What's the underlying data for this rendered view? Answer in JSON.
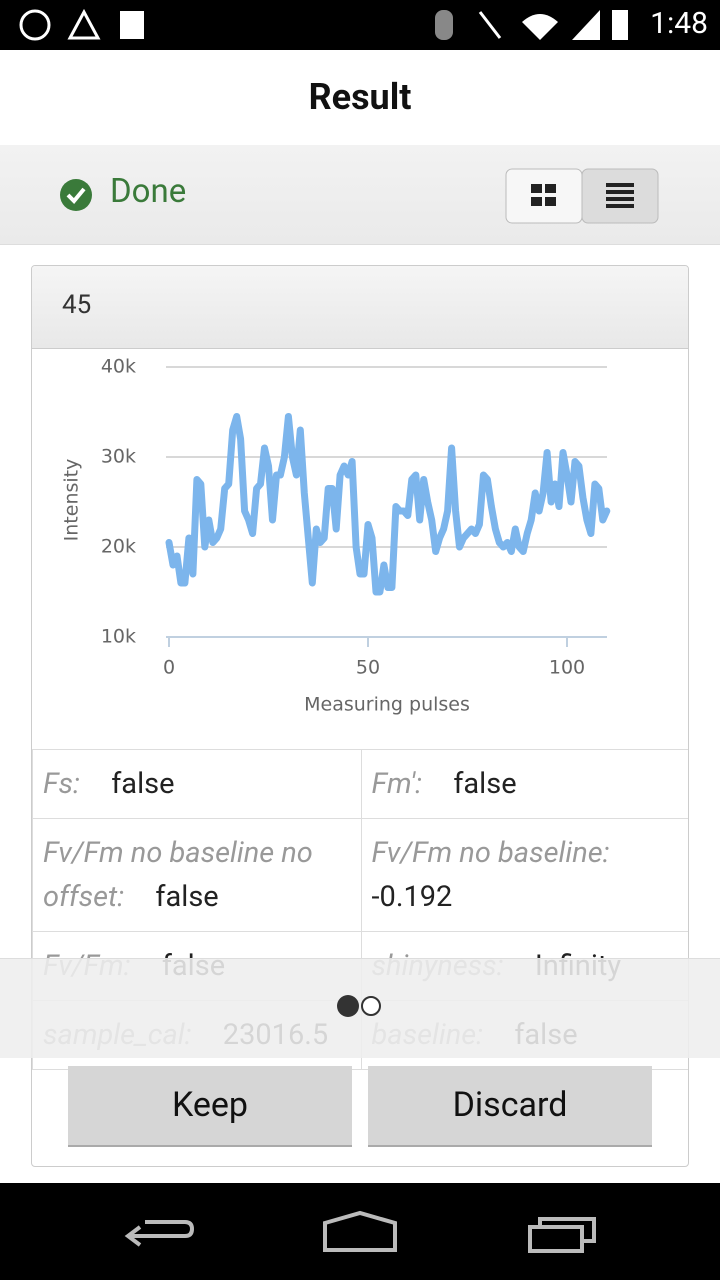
{
  "status_bar": {
    "time": "1:48"
  },
  "header": {
    "title": "Result"
  },
  "status": {
    "label": "Done"
  },
  "card": {
    "title": "45",
    "fields": [
      {
        "label": "Fs:",
        "value": "false"
      },
      {
        "label": "Fm':",
        "value": "false"
      },
      {
        "label": "Fv/Fm no baseline no offset:",
        "value": "false"
      },
      {
        "label": "Fv/Fm no baseline:",
        "value": -0.192
      },
      {
        "label": "Fv/Fm:",
        "value": "false"
      },
      {
        "label": "shinyness:",
        "value": "Infinity"
      },
      {
        "label": "sample_cal:",
        "value": 23016.5
      },
      {
        "label": "baseline:",
        "value": "false"
      }
    ]
  },
  "chart_data": {
    "type": "line",
    "color": "#7cb5ec",
    "x_label": "Measuring pulses",
    "y_label": "Intensity",
    "x": [
      0,
      1,
      2,
      3,
      4,
      5,
      6,
      7,
      8,
      9,
      10,
      11,
      12,
      13,
      14,
      15,
      16,
      17,
      18,
      19,
      20,
      21,
      22,
      23,
      24,
      25,
      26,
      27,
      28,
      29,
      30,
      31,
      32,
      33,
      34,
      35,
      36,
      37,
      38,
      39,
      40,
      41,
      42,
      43,
      44,
      45,
      46,
      47,
      48,
      49,
      50,
      51,
      52,
      53,
      54,
      55,
      56,
      57,
      58,
      59,
      60,
      61,
      62,
      63,
      64,
      65,
      66,
      67,
      68,
      69,
      70,
      71,
      72,
      73,
      74,
      75,
      76,
      77,
      78,
      79,
      80,
      81,
      82,
      83,
      84,
      85,
      86,
      87,
      88,
      89,
      90,
      91,
      92,
      93,
      94,
      95,
      96,
      97,
      98,
      99,
      100,
      101,
      102,
      103,
      104,
      105,
      106,
      107,
      108,
      109,
      110
    ],
    "values": [
      20500,
      18000,
      19000,
      16000,
      16000,
      21000,
      17000,
      27500,
      27000,
      20000,
      23000,
      20500,
      21000,
      22000,
      26500,
      27000,
      33000,
      34500,
      32000,
      24000,
      23000,
      21500,
      26500,
      27000,
      31000,
      29000,
      23000,
      28000,
      28000,
      30000,
      34500,
      30000,
      28000,
      33000,
      26000,
      21000,
      16000,
      22000,
      20500,
      21000,
      26500,
      26500,
      22000,
      28000,
      29000,
      28000,
      29500,
      20000,
      17000,
      17000,
      22500,
      21000,
      15000,
      15000,
      18000,
      15500,
      15500,
      24500,
      24000,
      24000,
      23500,
      27500,
      28000,
      23000,
      27500,
      25000,
      23000,
      19500,
      21000,
      22000,
      24000,
      31000,
      24000,
      20000,
      21000,
      21500,
      22000,
      21500,
      22500,
      28000,
      27500,
      24500,
      22000,
      20500,
      20000,
      20500,
      19500,
      22000,
      20000,
      19500,
      21500,
      23000,
      26000,
      24000,
      26000,
      30500,
      25000,
      27000,
      24500,
      30500,
      28000,
      25000,
      29500,
      29000,
      25500,
      23000,
      21500,
      27000,
      26500,
      23000,
      24000
    ],
    "xlim": [
      0,
      110
    ],
    "xticks": [
      0,
      50,
      100
    ],
    "ylim": [
      10000,
      40000
    ],
    "yticks": [
      {
        "value": 10000,
        "label": "10k"
      },
      {
        "value": 20000,
        "label": "20k"
      },
      {
        "value": 30000,
        "label": "30k"
      },
      {
        "value": 40000,
        "label": "40k"
      }
    ],
    "grid": true
  },
  "buttons": [
    "Keep",
    "Discard"
  ]
}
